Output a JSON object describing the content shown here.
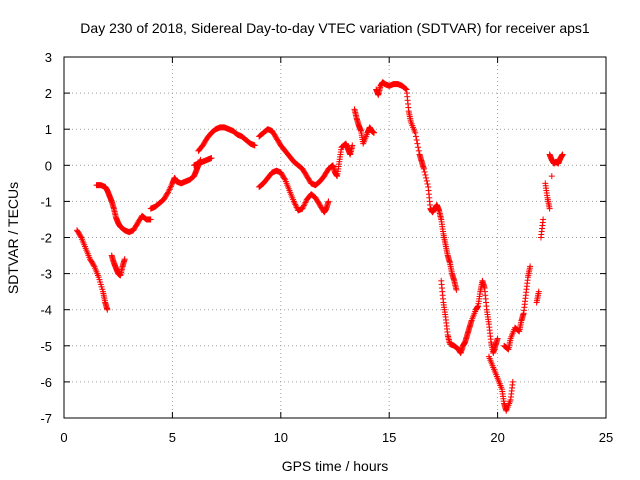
{
  "chart_data": {
    "type": "scatter",
    "title": "Day 230 of 2018, Sidereal Day-to-day VTEC variation (SDTVAR) for receiver aps1",
    "xlabel": "GPS time / hours",
    "ylabel": "SDTVAR / TECUs",
    "xlim": [
      0,
      25
    ],
    "ylim": [
      -7,
      3
    ],
    "x_ticks": [
      "0",
      "5",
      "10",
      "15",
      "20",
      "25"
    ],
    "y_ticks": [
      "3",
      "2",
      "1",
      "0",
      "-1",
      "-2",
      "-3",
      "-4",
      "-5",
      "-6",
      "-7"
    ],
    "grid": true,
    "marker": "plus",
    "color": "#ff0000",
    "series": [
      {
        "points": [
          [
            0.6,
            -1.8
          ],
          [
            0.8,
            -2.0
          ],
          [
            1.0,
            -2.3
          ],
          [
            1.2,
            -2.6
          ],
          [
            1.4,
            -2.8
          ],
          [
            1.6,
            -3.1
          ],
          [
            1.8,
            -3.5
          ],
          [
            1.9,
            -3.8
          ],
          [
            2.0,
            -4.0
          ],
          [
            1.5,
            -0.55
          ],
          [
            1.7,
            -0.55
          ],
          [
            1.9,
            -0.6
          ],
          [
            2.0,
            -0.7
          ],
          [
            2.1,
            -0.85
          ],
          [
            2.2,
            -1.0
          ],
          [
            2.3,
            -1.2
          ],
          [
            2.4,
            -1.45
          ],
          [
            2.5,
            -1.6
          ],
          [
            2.6,
            -1.7
          ],
          [
            2.8,
            -1.8
          ],
          [
            3.0,
            -1.85
          ],
          [
            3.2,
            -1.8
          ],
          [
            3.4,
            -1.6
          ],
          [
            3.6,
            -1.4
          ],
          [
            3.8,
            -1.5
          ],
          [
            4.0,
            -1.5
          ],
          [
            2.2,
            -2.5
          ],
          [
            2.3,
            -2.7
          ],
          [
            2.4,
            -2.85
          ],
          [
            2.5,
            -3.0
          ],
          [
            2.6,
            -3.05
          ],
          [
            2.7,
            -2.8
          ],
          [
            2.8,
            -2.6
          ],
          [
            4.0,
            -1.2
          ],
          [
            4.2,
            -1.15
          ],
          [
            4.4,
            -1.05
          ],
          [
            4.6,
            -0.95
          ],
          [
            4.8,
            -0.75
          ],
          [
            5.0,
            -0.5
          ],
          [
            5.1,
            -0.35
          ],
          [
            5.2,
            -0.45
          ],
          [
            5.4,
            -0.5
          ],
          [
            5.6,
            -0.45
          ],
          [
            5.8,
            -0.4
          ],
          [
            6.0,
            -0.3
          ],
          [
            6.1,
            -0.15
          ],
          [
            6.2,
            0.0
          ],
          [
            6.3,
            0.15
          ],
          [
            6.0,
            0.0
          ],
          [
            6.2,
            0.05
          ],
          [
            6.4,
            0.1
          ],
          [
            6.6,
            0.15
          ],
          [
            6.8,
            0.2
          ],
          [
            6.2,
            0.4
          ],
          [
            6.4,
            0.55
          ],
          [
            6.6,
            0.75
          ],
          [
            6.8,
            0.9
          ],
          [
            7.0,
            1.0
          ],
          [
            7.2,
            1.05
          ],
          [
            7.4,
            1.05
          ],
          [
            7.6,
            1.0
          ],
          [
            7.8,
            0.95
          ],
          [
            8.0,
            0.85
          ],
          [
            8.2,
            0.8
          ],
          [
            8.4,
            0.7
          ],
          [
            8.6,
            0.6
          ],
          [
            8.8,
            0.55
          ],
          [
            9.0,
            -0.6
          ],
          [
            9.2,
            -0.5
          ],
          [
            9.4,
            -0.35
          ],
          [
            9.6,
            -0.2
          ],
          [
            9.8,
            -0.15
          ],
          [
            10.0,
            -0.2
          ],
          [
            10.2,
            -0.4
          ],
          [
            10.4,
            -0.7
          ],
          [
            10.6,
            -1.0
          ],
          [
            10.8,
            -1.25
          ],
          [
            11.0,
            -1.2
          ],
          [
            11.2,
            -0.95
          ],
          [
            11.4,
            -0.8
          ],
          [
            11.6,
            -0.9
          ],
          [
            11.8,
            -1.1
          ],
          [
            12.0,
            -1.3
          ],
          [
            12.1,
            -1.2
          ],
          [
            12.2,
            -1.0
          ],
          [
            9.0,
            0.8
          ],
          [
            9.2,
            0.9
          ],
          [
            9.4,
            1.0
          ],
          [
            9.6,
            0.95
          ],
          [
            9.8,
            0.75
          ],
          [
            10.0,
            0.55
          ],
          [
            10.2,
            0.4
          ],
          [
            10.4,
            0.25
          ],
          [
            10.6,
            0.1
          ],
          [
            10.8,
            0.0
          ],
          [
            11.0,
            -0.1
          ],
          [
            11.2,
            -0.3
          ],
          [
            11.4,
            -0.5
          ],
          [
            11.6,
            -0.55
          ],
          [
            11.8,
            -0.45
          ],
          [
            12.0,
            -0.3
          ],
          [
            12.2,
            -0.1
          ],
          [
            12.4,
            0.0
          ],
          [
            12.5,
            -0.2
          ],
          [
            12.6,
            -0.3
          ],
          [
            12.7,
            0.1
          ],
          [
            12.8,
            0.5
          ],
          [
            13.0,
            0.6
          ],
          [
            13.1,
            0.45
          ],
          [
            13.2,
            0.3
          ],
          [
            13.3,
            0.55
          ],
          [
            13.4,
            1.55
          ],
          [
            13.5,
            1.3
          ],
          [
            13.6,
            1.1
          ],
          [
            13.7,
            0.95
          ],
          [
            13.8,
            0.6
          ],
          [
            14.0,
            0.9
          ],
          [
            14.1,
            1.05
          ],
          [
            14.2,
            0.95
          ],
          [
            14.3,
            0.9
          ],
          [
            14.4,
            2.1
          ],
          [
            14.5,
            1.95
          ],
          [
            14.6,
            2.2
          ],
          [
            14.7,
            2.3
          ],
          [
            14.8,
            2.25
          ],
          [
            15.0,
            2.2
          ],
          [
            15.2,
            2.25
          ],
          [
            15.4,
            2.25
          ],
          [
            15.6,
            2.2
          ],
          [
            15.8,
            2.1
          ],
          [
            15.9,
            1.5
          ],
          [
            16.0,
            1.2
          ],
          [
            16.2,
            0.9
          ],
          [
            16.4,
            0.3
          ],
          [
            16.5,
            0.1
          ],
          [
            16.6,
            -0.1
          ],
          [
            16.8,
            -0.6
          ],
          [
            16.9,
            -1.2
          ],
          [
            17.0,
            -1.3
          ],
          [
            17.1,
            -1.2
          ],
          [
            17.2,
            -1.1
          ],
          [
            17.3,
            -1.25
          ],
          [
            17.4,
            -1.5
          ],
          [
            17.5,
            -1.9
          ],
          [
            17.6,
            -2.2
          ],
          [
            17.7,
            -2.5
          ],
          [
            17.8,
            -2.7
          ],
          [
            17.9,
            -3.0
          ],
          [
            18.0,
            -3.2
          ],
          [
            18.1,
            -3.45
          ],
          [
            17.4,
            -3.2
          ],
          [
            17.5,
            -3.8
          ],
          [
            17.6,
            -4.2
          ],
          [
            17.7,
            -4.7
          ],
          [
            17.8,
            -4.95
          ],
          [
            18.0,
            -5.0
          ],
          [
            18.2,
            -5.1
          ],
          [
            18.3,
            -5.2
          ],
          [
            18.4,
            -5.0
          ],
          [
            18.5,
            -4.9
          ],
          [
            18.6,
            -4.7
          ],
          [
            18.7,
            -4.5
          ],
          [
            18.8,
            -4.3
          ],
          [
            19.0,
            -4.0
          ],
          [
            19.1,
            -3.9
          ],
          [
            19.2,
            -3.5
          ],
          [
            19.3,
            -3.2
          ],
          [
            19.4,
            -3.4
          ],
          [
            19.5,
            -4.0
          ],
          [
            19.6,
            -4.4
          ],
          [
            19.7,
            -4.9
          ],
          [
            19.8,
            -5.2
          ],
          [
            19.9,
            -5.0
          ],
          [
            20.0,
            -4.8
          ],
          [
            19.6,
            -5.3
          ],
          [
            19.8,
            -5.6
          ],
          [
            20.0,
            -5.9
          ],
          [
            20.2,
            -6.2
          ],
          [
            20.3,
            -6.6
          ],
          [
            20.4,
            -6.8
          ],
          [
            20.6,
            -6.5
          ],
          [
            20.7,
            -6.0
          ],
          [
            20.3,
            -5.0
          ],
          [
            20.5,
            -5.1
          ],
          [
            20.6,
            -4.8
          ],
          [
            20.8,
            -4.5
          ],
          [
            21.0,
            -4.6
          ],
          [
            21.1,
            -4.3
          ],
          [
            21.2,
            -4.1
          ],
          [
            21.3,
            -3.6
          ],
          [
            21.4,
            -3.1
          ],
          [
            21.5,
            -2.8
          ],
          [
            21.8,
            -3.8
          ],
          [
            21.9,
            -3.5
          ],
          [
            22.0,
            -2.0
          ],
          [
            22.1,
            -1.5
          ],
          [
            22.2,
            -0.5
          ],
          [
            22.3,
            -0.9
          ],
          [
            22.4,
            -1.2
          ],
          [
            22.5,
            -0.3
          ],
          [
            22.4,
            0.3
          ],
          [
            22.5,
            0.15
          ],
          [
            22.6,
            0.05
          ],
          [
            22.7,
            0.1
          ],
          [
            22.8,
            0.05
          ],
          [
            22.9,
            0.2
          ],
          [
            23.0,
            0.3
          ]
        ]
      }
    ]
  }
}
